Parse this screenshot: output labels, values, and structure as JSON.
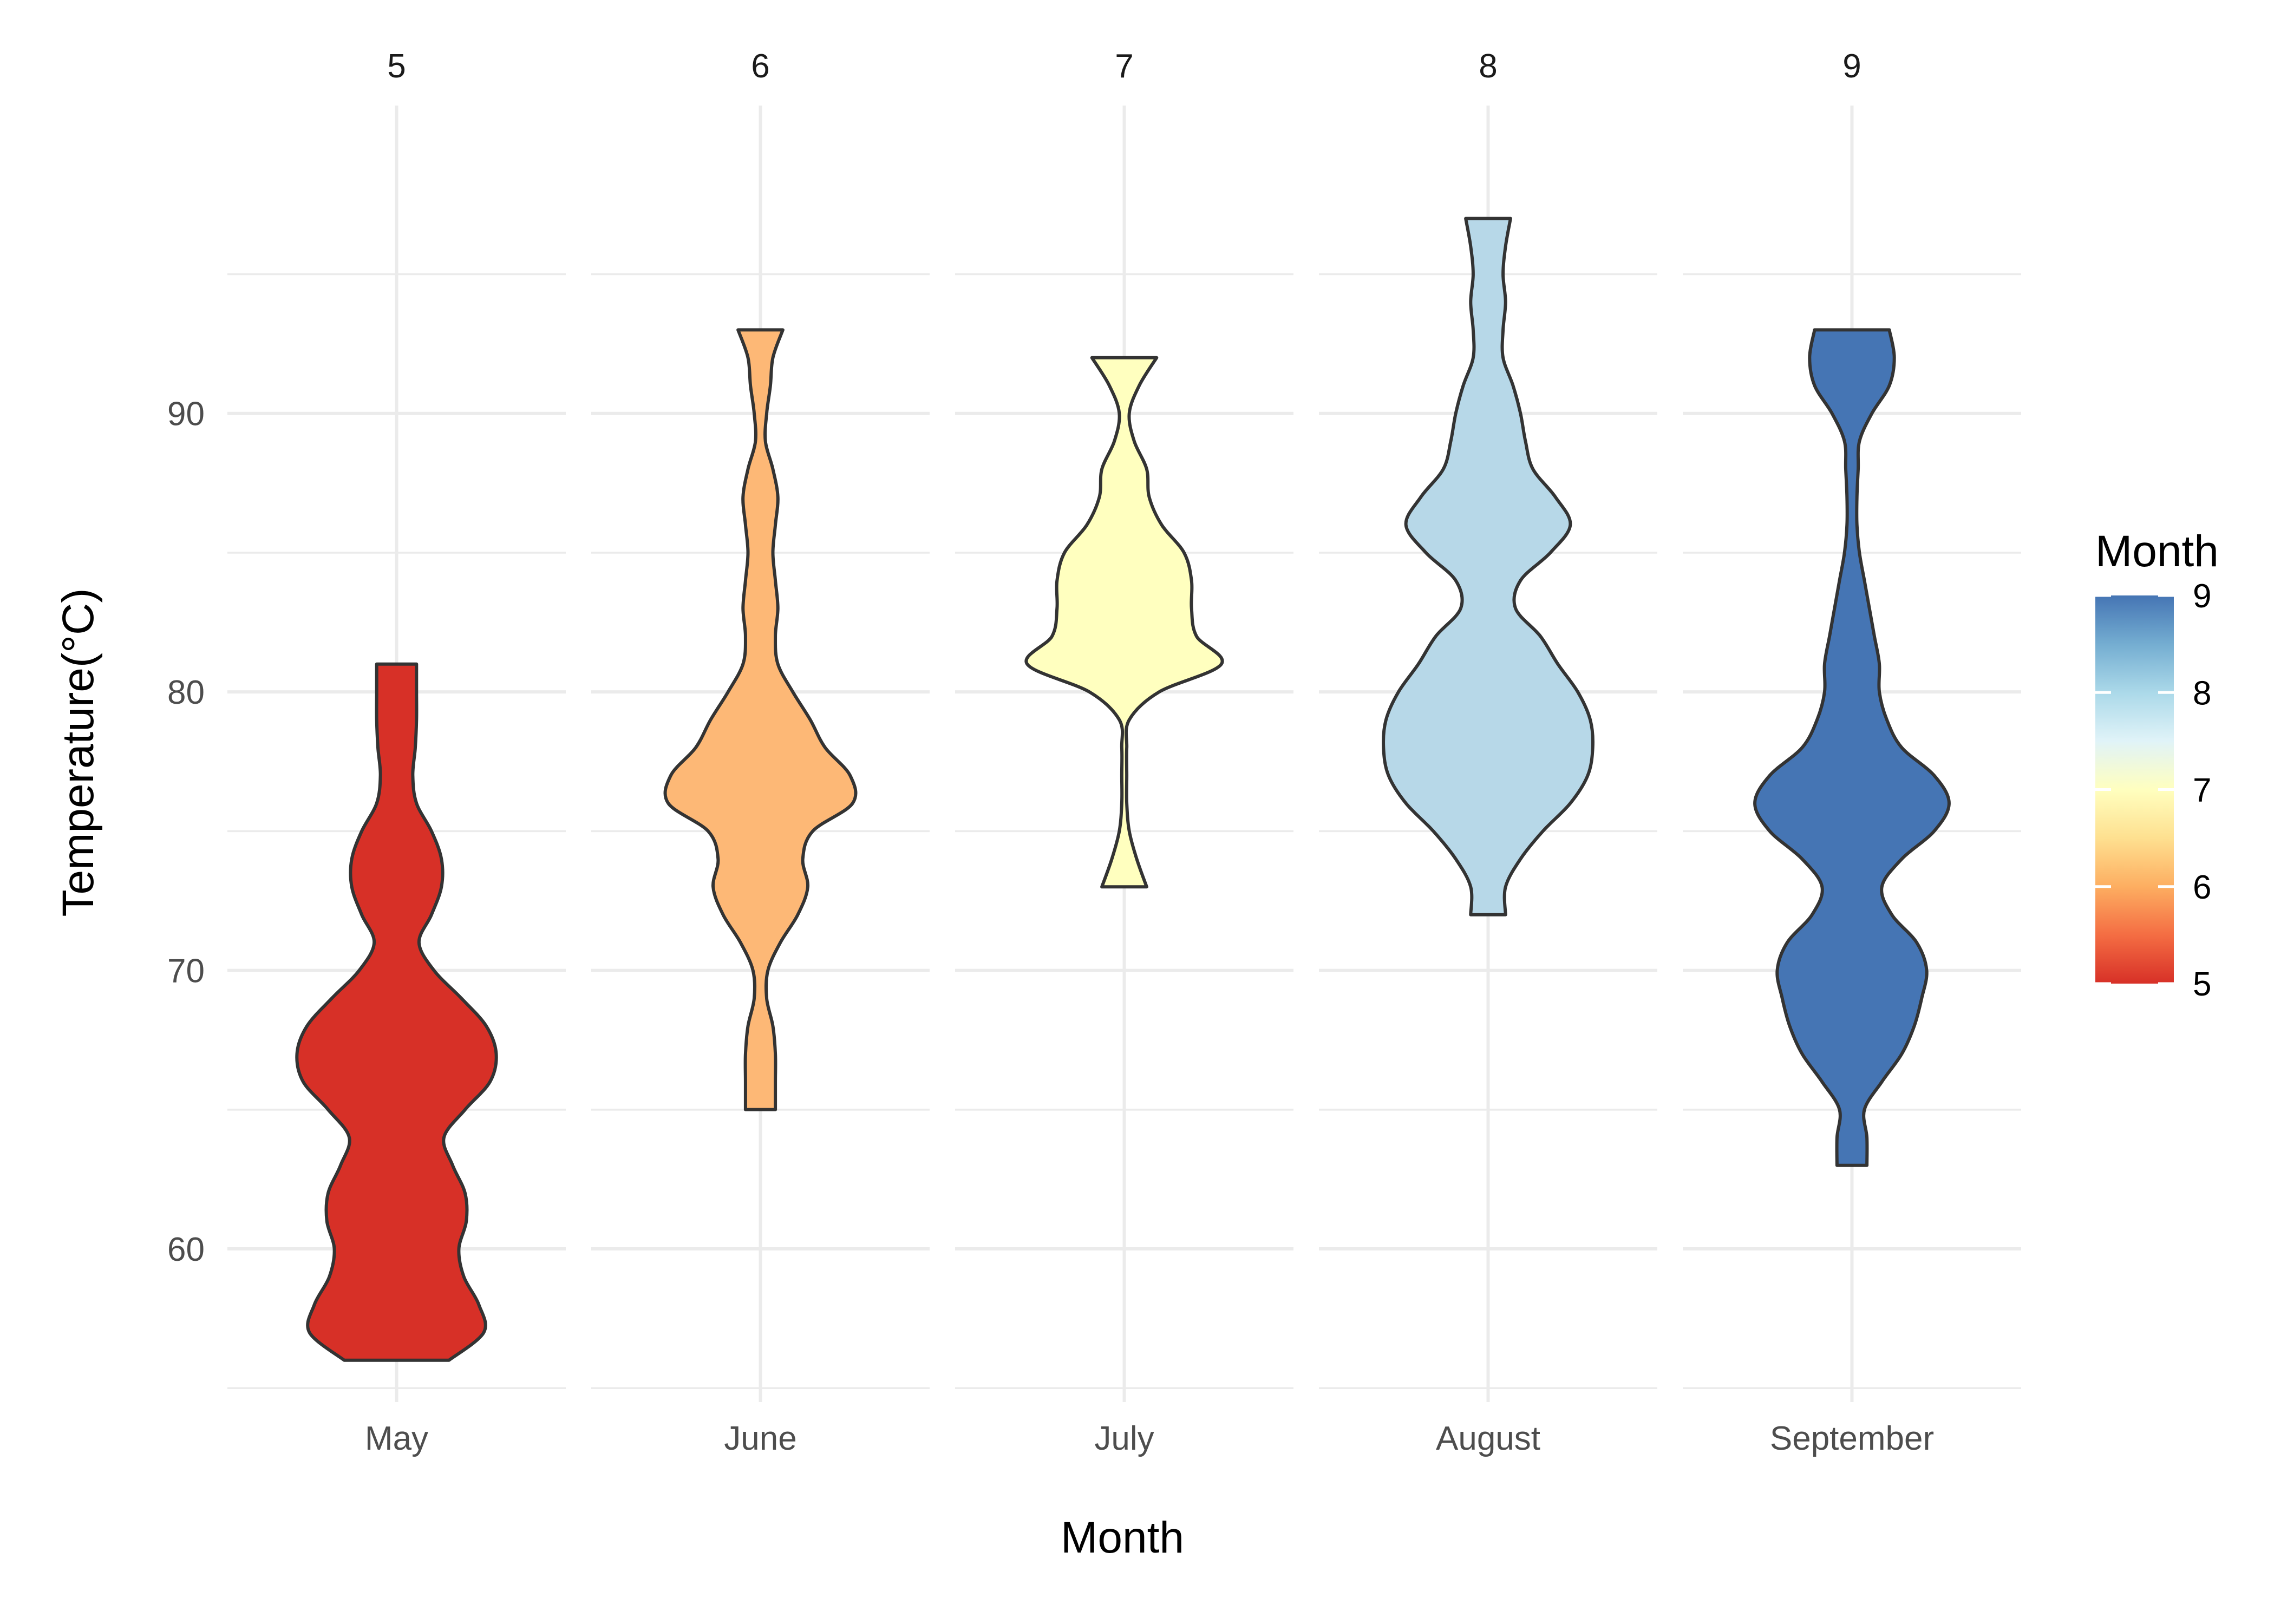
{
  "chart_data": {
    "type": "violin",
    "title": "",
    "xlabel": "Month",
    "ylabel": "Temperature(°C)",
    "ylim": [
      54.5,
      99.5
    ],
    "y_ticks": [
      60,
      70,
      80,
      90
    ],
    "grid": true,
    "facet_labels": [
      "5",
      "6",
      "7",
      "8",
      "9"
    ],
    "categories": [
      "May",
      "June",
      "July",
      "August",
      "September"
    ],
    "series": [
      {
        "month": 5,
        "category": "May",
        "min": 56,
        "max": 81,
        "profile": [
          [
            56,
            0.42
          ],
          [
            57,
            0.7
          ],
          [
            58,
            0.66
          ],
          [
            59,
            0.54
          ],
          [
            60,
            0.5
          ],
          [
            61,
            0.56
          ],
          [
            62,
            0.55
          ],
          [
            63,
            0.45
          ],
          [
            64,
            0.38
          ],
          [
            65,
            0.55
          ],
          [
            66,
            0.75
          ],
          [
            67,
            0.8
          ],
          [
            68,
            0.72
          ],
          [
            69,
            0.52
          ],
          [
            70,
            0.3
          ],
          [
            71,
            0.18
          ],
          [
            72,
            0.28
          ],
          [
            73,
            0.36
          ],
          [
            74,
            0.36
          ],
          [
            75,
            0.28
          ],
          [
            76,
            0.16
          ],
          [
            77,
            0.13
          ],
          [
            78,
            0.15
          ],
          [
            79,
            0.16
          ],
          [
            80,
            0.16
          ],
          [
            81,
            0.16
          ]
        ]
      },
      {
        "month": 6,
        "category": "June",
        "min": 65,
        "max": 93,
        "profile": [
          [
            65,
            0.12
          ],
          [
            66,
            0.12
          ],
          [
            67,
            0.12
          ],
          [
            68,
            0.1
          ],
          [
            69,
            0.05
          ],
          [
            70,
            0.06
          ],
          [
            71,
            0.16
          ],
          [
            72,
            0.3
          ],
          [
            73,
            0.38
          ],
          [
            74,
            0.34
          ],
          [
            75,
            0.42
          ],
          [
            76,
            0.74
          ],
          [
            77,
            0.72
          ],
          [
            78,
            0.52
          ],
          [
            79,
            0.4
          ],
          [
            80,
            0.26
          ],
          [
            81,
            0.14
          ],
          [
            82,
            0.12
          ],
          [
            83,
            0.14
          ],
          [
            84,
            0.12
          ],
          [
            85,
            0.1
          ],
          [
            86,
            0.12
          ],
          [
            87,
            0.14
          ],
          [
            88,
            0.1
          ],
          [
            89,
            0.04
          ],
          [
            90,
            0.05
          ],
          [
            91,
            0.08
          ],
          [
            92,
            0.1
          ],
          [
            93,
            0.18
          ]
        ]
      },
      {
        "month": 7,
        "category": "July",
        "min": 73,
        "max": 92,
        "profile": [
          [
            73,
            0.18
          ],
          [
            74,
            0.1
          ],
          [
            75,
            0.04
          ],
          [
            76,
            0.02
          ],
          [
            77,
            0.02
          ],
          [
            78,
            0.02
          ],
          [
            79,
            0.04
          ],
          [
            80,
            0.28
          ],
          [
            81,
            0.78
          ],
          [
            82,
            0.58
          ],
          [
            83,
            0.54
          ],
          [
            84,
            0.54
          ],
          [
            85,
            0.48
          ],
          [
            86,
            0.3
          ],
          [
            87,
            0.2
          ],
          [
            88,
            0.18
          ],
          [
            89,
            0.08
          ],
          [
            90,
            0.04
          ],
          [
            91,
            0.12
          ],
          [
            92,
            0.26
          ]
        ]
      },
      {
        "month": 8,
        "category": "August",
        "min": 72,
        "max": 97,
        "profile": [
          [
            72,
            0.14
          ],
          [
            73,
            0.14
          ],
          [
            74,
            0.26
          ],
          [
            75,
            0.44
          ],
          [
            76,
            0.66
          ],
          [
            77,
            0.8
          ],
          [
            78,
            0.84
          ],
          [
            79,
            0.82
          ],
          [
            80,
            0.72
          ],
          [
            81,
            0.56
          ],
          [
            82,
            0.42
          ],
          [
            83,
            0.22
          ],
          [
            84,
            0.26
          ],
          [
            85,
            0.5
          ],
          [
            86,
            0.66
          ],
          [
            87,
            0.54
          ],
          [
            88,
            0.36
          ],
          [
            89,
            0.3
          ],
          [
            90,
            0.26
          ],
          [
            91,
            0.2
          ],
          [
            92,
            0.12
          ],
          [
            93,
            0.12
          ],
          [
            94,
            0.14
          ],
          [
            95,
            0.12
          ],
          [
            96,
            0.14
          ],
          [
            97,
            0.18
          ]
        ]
      },
      {
        "month": 9,
        "category": "September",
        "min": 63,
        "max": 93,
        "profile": [
          [
            63,
            0.12
          ],
          [
            64,
            0.12
          ],
          [
            65,
            0.1
          ],
          [
            66,
            0.24
          ],
          [
            67,
            0.4
          ],
          [
            68,
            0.5
          ],
          [
            69,
            0.56
          ],
          [
            70,
            0.6
          ],
          [
            71,
            0.52
          ],
          [
            72,
            0.32
          ],
          [
            73,
            0.24
          ],
          [
            74,
            0.4
          ],
          [
            75,
            0.66
          ],
          [
            76,
            0.78
          ],
          [
            77,
            0.66
          ],
          [
            78,
            0.4
          ],
          [
            79,
            0.28
          ],
          [
            80,
            0.22
          ],
          [
            81,
            0.22
          ],
          [
            82,
            0.18
          ],
          [
            83,
            0.14
          ],
          [
            84,
            0.1
          ],
          [
            85,
            0.06
          ],
          [
            86,
            0.04
          ],
          [
            87,
            0.04
          ],
          [
            88,
            0.05
          ],
          [
            89,
            0.06
          ],
          [
            90,
            0.16
          ],
          [
            91,
            0.3
          ],
          [
            92,
            0.34
          ],
          [
            93,
            0.3
          ]
        ]
      }
    ],
    "legend": {
      "title": "Month",
      "position": "right",
      "type": "colorbar",
      "ticks": [
        5,
        6,
        7,
        8,
        9
      ],
      "colors": {
        "5": "#d73027",
        "6": "#fdb876",
        "7": "#ffffbf",
        "8": "#b7d8e8",
        "9": "#4575b4"
      }
    }
  }
}
